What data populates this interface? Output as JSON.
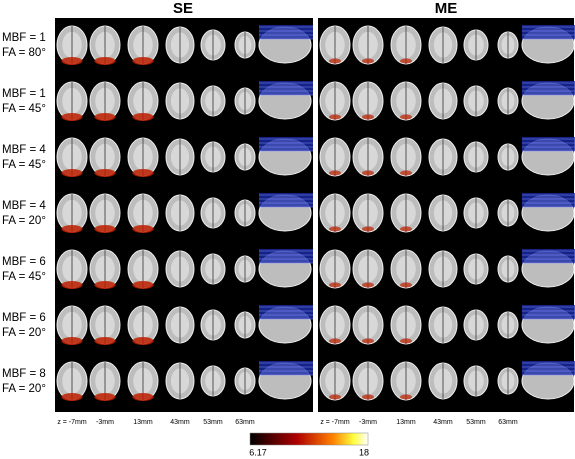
{
  "panels": [
    {
      "title": "SE"
    },
    {
      "title": "ME"
    }
  ],
  "rows": [
    {
      "mbf": "MBF = 1",
      "fa": "FA = 80°"
    },
    {
      "mbf": "MBF = 1",
      "fa": "FA = 45°"
    },
    {
      "mbf": "MBF = 4",
      "fa": "FA = 45°"
    },
    {
      "mbf": "MBF = 4",
      "fa": "FA = 20°"
    },
    {
      "mbf": "MBF = 6",
      "fa": "FA = 45°"
    },
    {
      "mbf": "MBF = 6",
      "fa": "FA = 20°"
    },
    {
      "mbf": "MBF = 8",
      "fa": "FA = 20°"
    }
  ],
  "slice_labels": [
    "z = -7mm",
    "-3mm",
    "13mm",
    "43mm",
    "53mm",
    "63mm"
  ],
  "colorbar": {
    "min": "6.17",
    "max": "18"
  }
}
